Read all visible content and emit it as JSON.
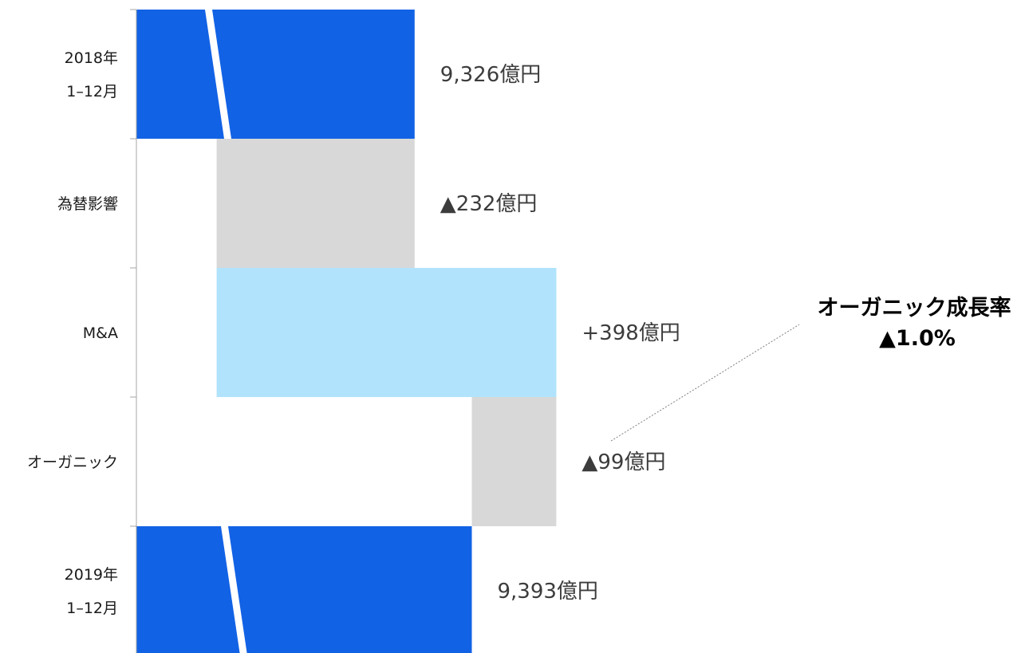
{
  "chart_data": {
    "type": "bar",
    "orientation": "horizontal-waterfall",
    "categories": [
      [
        "2018年",
        "1–12月"
      ],
      [
        "為替影響"
      ],
      [
        "M&A"
      ],
      [
        "オーガニック"
      ],
      [
        "2019年",
        "1–12月"
      ]
    ],
    "values": [
      9326,
      -232,
      398,
      -99,
      9393
    ],
    "kinds": [
      "total",
      "decrease",
      "increase",
      "decrease",
      "total"
    ],
    "data_labels": [
      "9,326億円",
      "▲232億円",
      "+398億円",
      "▲99億円",
      "9,393億円"
    ],
    "axis_break": true,
    "callout": {
      "title": "オーガニック成長率",
      "value": "▲1.0%",
      "points_to": "オーガニック"
    },
    "colors": {
      "total": "#1262e5",
      "decrease": "#d8d8d8",
      "increase": "#b1e4fc",
      "axis": "#a6a6a6",
      "leader": "#7f7f7f"
    }
  }
}
